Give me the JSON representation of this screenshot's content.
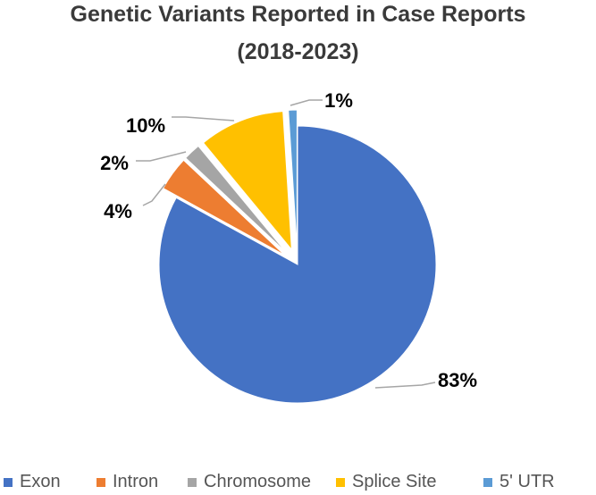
{
  "chart_data": {
    "type": "pie",
    "title": "Genetic Variants Reported in Case  Reports",
    "subtitle": "(2018-2023)",
    "legend_position": "bottom",
    "categories": [
      "Exon",
      "Intron",
      "Chromosome",
      "Splice Site",
      "5' UTR"
    ],
    "values": [
      83,
      4,
      2,
      10,
      1
    ],
    "data_labels": [
      "83%",
      "4%",
      "2%",
      "10%",
      "1%"
    ],
    "colors": [
      "#4472c4",
      "#ed7d31",
      "#a5a5a5",
      "#ffc000",
      "#5b9bd5"
    ],
    "exploded": true
  }
}
